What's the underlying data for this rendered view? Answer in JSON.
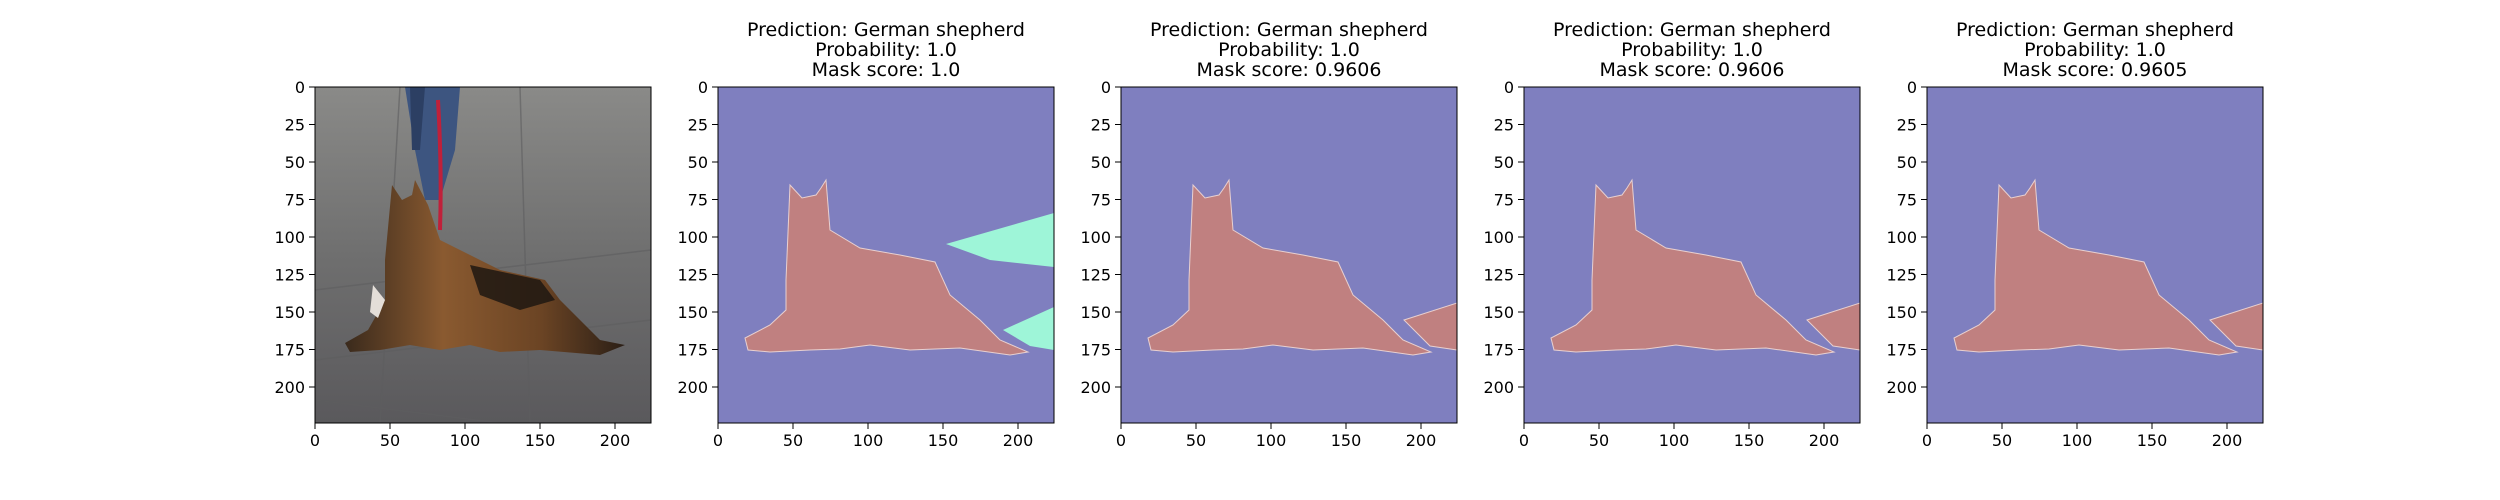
{
  "chart_data": [
    {
      "type": "image",
      "image_content": "photo: German shepherd lying on a grey tiled floor on a red leash, handler's legs in jeans behind",
      "title": [],
      "xlim": [
        0,
        224
      ],
      "ylim": [
        224,
        0
      ],
      "xticks": [
        0,
        50,
        100,
        150,
        200
      ],
      "yticks": [
        0,
        25,
        50,
        75,
        100,
        125,
        150,
        175,
        200
      ]
    },
    {
      "type": "heatmap",
      "title": [
        "Prediction: German shepherd",
        "Probability: 1.0",
        "Mask score: 1.0"
      ],
      "xlim": [
        0,
        224
      ],
      "ylim": [
        224,
        0
      ],
      "xticks": [
        0,
        50,
        100,
        150,
        200
      ],
      "yticks": [
        0,
        25,
        50,
        75,
        100,
        125,
        150,
        175,
        200
      ],
      "colors": {
        "background": "#7f7fbf",
        "dog": "#c08080",
        "secondary": "#9ef5d8"
      },
      "secondary_regions": "two wedges at the right edge"
    },
    {
      "type": "heatmap",
      "title": [
        "Prediction: German shepherd",
        "Probability: 1.0",
        "Mask score: 0.9606"
      ],
      "xlim": [
        0,
        224
      ],
      "ylim": [
        224,
        0
      ],
      "xticks": [
        0,
        50,
        100,
        150,
        200
      ],
      "yticks": [
        0,
        25,
        50,
        75,
        100,
        125,
        150,
        175,
        200
      ],
      "colors": {
        "background": "#7f7fbf",
        "dog": "#c08080"
      },
      "secondary_regions": "tail patch at right edge"
    },
    {
      "type": "heatmap",
      "title": [
        "Prediction: German shepherd",
        "Probability: 1.0",
        "Mask score: 0.9606"
      ],
      "xlim": [
        0,
        224
      ],
      "ylim": [
        224,
        0
      ],
      "xticks": [
        0,
        50,
        100,
        150,
        200
      ],
      "yticks": [
        0,
        25,
        50,
        75,
        100,
        125,
        150,
        175,
        200
      ],
      "colors": {
        "background": "#7f7fbf",
        "dog": "#c08080"
      },
      "secondary_regions": "tail patch at right edge"
    },
    {
      "type": "heatmap",
      "title": [
        "Prediction: German shepherd",
        "Probability: 1.0",
        "Mask score: 0.9605"
      ],
      "xlim": [
        0,
        224
      ],
      "ylim": [
        224,
        0
      ],
      "xticks": [
        0,
        50,
        100,
        150,
        200
      ],
      "yticks": [
        0,
        25,
        50,
        75,
        100,
        125,
        150,
        175,
        200
      ],
      "colors": {
        "background": "#7f7fbf",
        "dog": "#c08080"
      },
      "secondary_regions": "tail patch at right edge"
    }
  ]
}
